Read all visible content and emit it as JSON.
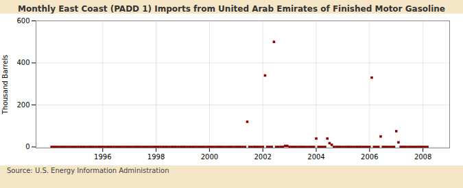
{
  "chart_data": {
    "type": "scatter",
    "title": "Monthly East Coast (PADD 1) Imports from United Arab Emirates of Finished Motor Gasoline",
    "ylabel": "Thousand Barrels",
    "source": "Source: U.S. Energy Information Administration",
    "color": "#8b0000",
    "marker": "square",
    "grid": true,
    "xlim": [
      1993.5,
      2009.0
    ],
    "ylim": [
      -5,
      600
    ],
    "xticks": [
      1996,
      1998,
      2000,
      2002,
      2004,
      2006,
      2008
    ],
    "yticks": [
      0,
      200,
      400,
      600
    ],
    "x": [
      1994.083,
      1994.167,
      1994.25,
      1994.333,
      1994.417,
      1994.5,
      1994.583,
      1994.667,
      1994.75,
      1994.833,
      1994.917,
      1995.0,
      1995.083,
      1995.167,
      1995.25,
      1995.333,
      1995.417,
      1995.5,
      1995.583,
      1995.667,
      1995.75,
      1995.833,
      1995.917,
      1996.0,
      1996.083,
      1996.167,
      1996.25,
      1996.333,
      1996.417,
      1996.5,
      1996.583,
      1996.667,
      1996.75,
      1996.833,
      1996.917,
      1997.0,
      1997.083,
      1997.167,
      1997.25,
      1997.333,
      1997.417,
      1997.5,
      1997.583,
      1997.667,
      1997.75,
      1997.833,
      1997.917,
      1998.0,
      1998.083,
      1998.167,
      1998.25,
      1998.333,
      1998.417,
      1998.5,
      1998.583,
      1998.667,
      1998.75,
      1998.833,
      1998.917,
      1999.0,
      1999.083,
      1999.167,
      1999.25,
      1999.333,
      1999.417,
      1999.5,
      1999.583,
      1999.667,
      1999.75,
      1999.833,
      1999.917,
      2000.0,
      2000.083,
      2000.167,
      2000.25,
      2000.333,
      2000.417,
      2000.5,
      2000.583,
      2000.667,
      2000.75,
      2000.833,
      2000.917,
      2001.0,
      2001.083,
      2001.167,
      2001.25,
      2001.333,
      2001.417,
      2001.5,
      2001.583,
      2001.667,
      2001.75,
      2001.833,
      2001.917,
      2002.0,
      2002.083,
      2002.167,
      2002.25,
      2002.333,
      2002.417,
      2002.5,
      2002.583,
      2002.667,
      2002.75,
      2002.833,
      2002.917,
      2003.0,
      2003.083,
      2003.167,
      2003.25,
      2003.333,
      2003.417,
      2003.5,
      2003.583,
      2003.667,
      2003.75,
      2003.833,
      2003.917,
      2004.0,
      2004.083,
      2004.167,
      2004.25,
      2004.333,
      2004.417,
      2004.5,
      2004.583,
      2004.667,
      2004.75,
      2004.833,
      2004.917,
      2005.0,
      2005.083,
      2005.167,
      2005.25,
      2005.333,
      2005.417,
      2005.5,
      2005.583,
      2005.667,
      2005.75,
      2005.833,
      2005.917,
      2006.0,
      2006.083,
      2006.167,
      2006.25,
      2006.333,
      2006.417,
      2006.5,
      2006.583,
      2006.667,
      2006.75,
      2006.833,
      2006.917,
      2007.0,
      2007.083,
      2007.167,
      2007.25,
      2007.333,
      2007.417,
      2007.5,
      2007.583,
      2007.667,
      2007.75,
      2007.833,
      2007.917,
      2008.0,
      2008.083,
      2008.167
    ],
    "values": [
      0,
      0,
      0,
      0,
      0,
      0,
      0,
      0,
      0,
      0,
      0,
      0,
      0,
      0,
      0,
      0,
      0,
      0,
      0,
      0,
      0,
      0,
      0,
      0,
      0,
      0,
      0,
      0,
      0,
      0,
      0,
      0,
      0,
      0,
      0,
      0,
      0,
      0,
      0,
      0,
      0,
      0,
      0,
      0,
      0,
      0,
      0,
      0,
      0,
      0,
      0,
      0,
      0,
      0,
      0,
      0,
      0,
      0,
      0,
      0,
      0,
      0,
      0,
      0,
      0,
      0,
      0,
      0,
      0,
      0,
      0,
      0,
      0,
      0,
      0,
      0,
      0,
      0,
      0,
      0,
      0,
      0,
      0,
      0,
      0,
      0,
      0,
      0,
      120,
      0,
      0,
      0,
      0,
      0,
      0,
      0,
      340,
      0,
      0,
      0,
      500,
      0,
      0,
      0,
      0,
      5,
      5,
      0,
      0,
      0,
      0,
      0,
      0,
      0,
      0,
      0,
      0,
      0,
      0,
      40,
      0,
      0,
      0,
      0,
      40,
      18,
      10,
      0,
      0,
      0,
      0,
      0,
      0,
      0,
      0,
      0,
      0,
      0,
      0,
      0,
      0,
      0,
      0,
      0,
      330,
      0,
      0,
      0,
      50,
      0,
      0,
      0,
      0,
      0,
      0,
      75,
      22,
      0,
      0,
      0,
      0,
      0,
      0,
      0,
      0,
      0,
      0,
      0,
      0,
      0
    ]
  }
}
